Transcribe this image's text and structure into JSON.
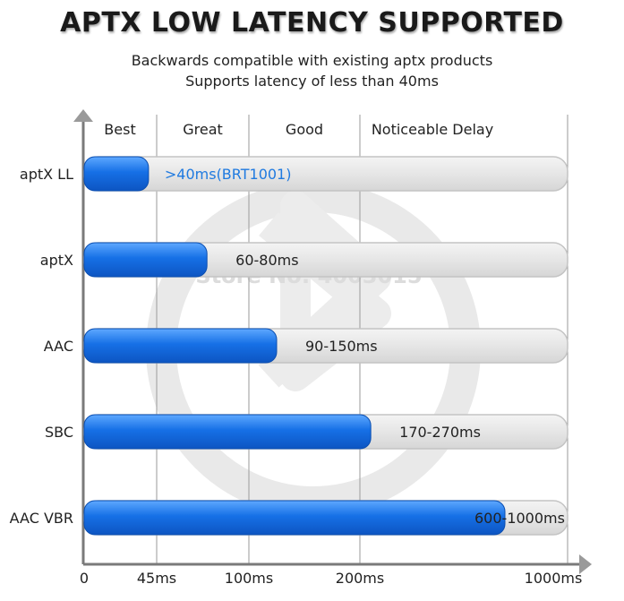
{
  "header": {
    "title": "APTX LOW LATENCY SUPPORTED",
    "subtitle_line1": "Backwards compatible with existing aptx products",
    "subtitle_line2": "Supports latency of less than 40ms"
  },
  "watermark": "Store No: 4003015",
  "colors": {
    "bar_fill": "#1670e6",
    "bar_fill_dark": "#0d55c2",
    "track": "#e2e2e2",
    "track_border": "#c4c4c4",
    "axis": "#7a7a7a",
    "band_line": "#9a9a9a"
  },
  "chart_data": {
    "type": "bar",
    "orientation": "horizontal",
    "title": "APTX LOW LATENCY SUPPORTED",
    "categories": [
      "aptX LL",
      "aptX",
      "AAC",
      "SBC",
      "AAC VBR"
    ],
    "values": [
      40,
      75,
      125,
      245,
      800
    ],
    "value_labels": [
      ">40ms(BRT1001)",
      "60-80ms",
      "90-150ms",
      "170-270ms",
      "600-1000ms"
    ],
    "x_ticks": [
      {
        "value": 0,
        "label": "0"
      },
      {
        "value": 45,
        "label": "45ms"
      },
      {
        "value": 100,
        "label": "100ms"
      },
      {
        "value": 200,
        "label": "200ms"
      },
      {
        "value": 1000,
        "label": "1000ms"
      }
    ],
    "bands": [
      {
        "label": "Best",
        "from": 0,
        "to": 45
      },
      {
        "label": "Great",
        "from": 45,
        "to": 100
      },
      {
        "label": "Good",
        "from": 100,
        "to": 200
      },
      {
        "label": "Noticeable Delay",
        "from": 200,
        "to": 1000
      }
    ],
    "xlim": [
      0,
      1000
    ],
    "x_scale": "piecewise",
    "xlabel": "",
    "ylabel": "",
    "grid": false,
    "legend": "none"
  }
}
